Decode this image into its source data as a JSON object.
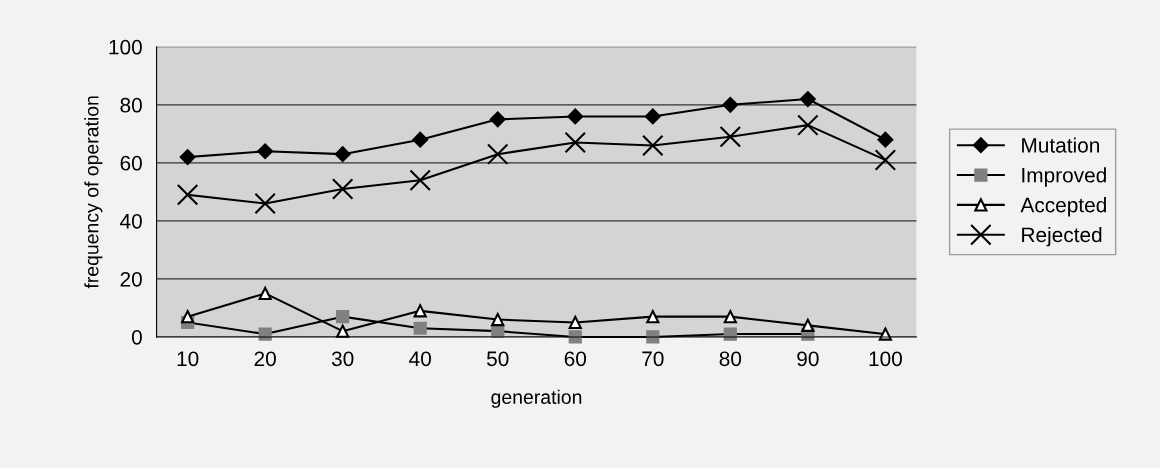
{
  "chart_data": {
    "type": "line",
    "xlabel": "generation",
    "ylabel": "frequency of operation",
    "categories": [
      "10",
      "20",
      "30",
      "40",
      "50",
      "60",
      "70",
      "80",
      "90",
      "100"
    ],
    "series": [
      {
        "name": "Mutation",
        "color": "#000000",
        "marker": "diamond",
        "values": [
          62,
          64,
          63,
          68,
          75,
          76,
          76,
          80,
          82,
          68
        ]
      },
      {
        "name": "Improved",
        "color": "#808080",
        "marker": "square",
        "values": [
          5,
          1,
          7,
          3,
          2,
          0,
          0,
          1,
          1,
          null
        ]
      },
      {
        "name": "Accepted",
        "color": "#000000",
        "marker": "triangle",
        "values": [
          7,
          15,
          2,
          9,
          6,
          5,
          7,
          7,
          4,
          1
        ]
      },
      {
        "name": "Rejected",
        "color": "#000000",
        "marker": "cross",
        "values": [
          49,
          46,
          51,
          54,
          63,
          67,
          66,
          69,
          73,
          61
        ]
      }
    ],
    "ylim": [
      0,
      100
    ],
    "yticks": [
      0,
      20,
      40,
      60,
      80,
      100
    ],
    "grid": "y",
    "legend": "right"
  }
}
